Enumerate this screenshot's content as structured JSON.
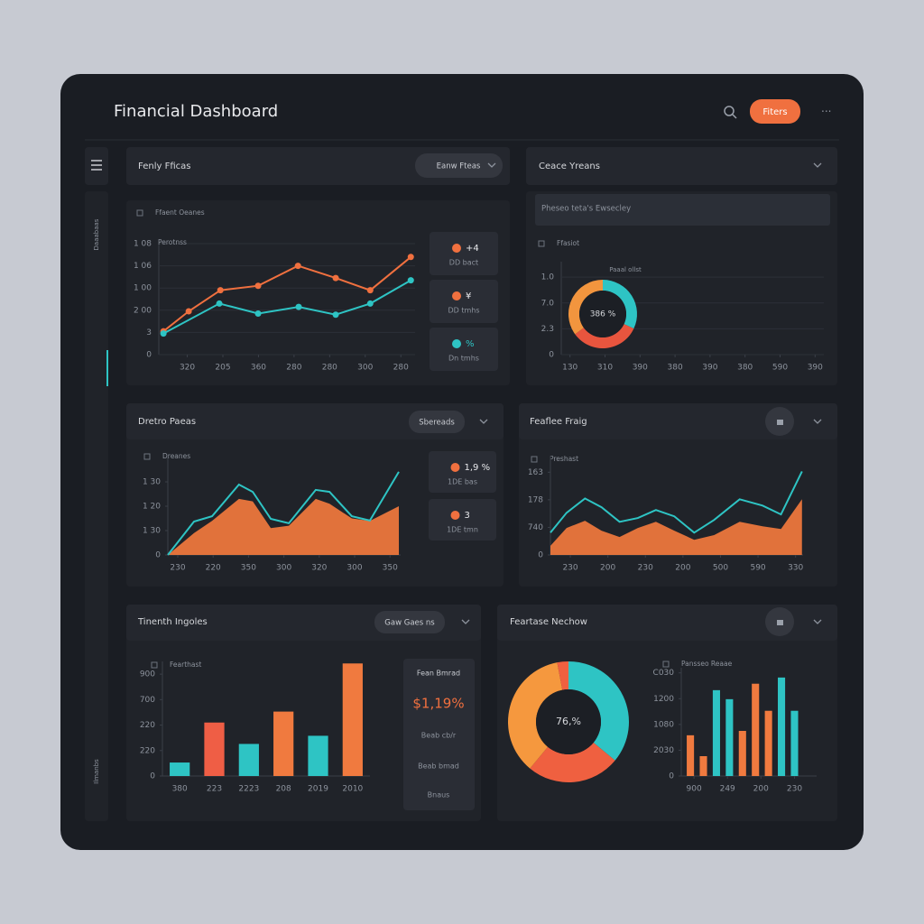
{
  "header": {
    "title": "Financial Dashboard",
    "button": "Fiters"
  },
  "sidebar": {
    "labels": [
      "Daaabaas",
      "Ilmanbs"
    ]
  },
  "panels": [
    {
      "title": "Fenly Fficas",
      "button": "Eanw Fteas",
      "label": "Ffaent Oeanes",
      "cards": [
        {
          "value": "+4",
          "label": "DD bact",
          "color": "#f0703f"
        },
        {
          "value": "¥",
          "label": "DD tmhs",
          "color": "#f0703f"
        },
        {
          "value": "%",
          "label": "Dn tmhs",
          "color": "#2ec4c4"
        }
      ]
    },
    {
      "title": "Ceace Yreans",
      "input": "Pheseo teta's Ewsecley",
      "label": "Ffasiot"
    },
    {
      "title": "Dretro Paeas",
      "button": "Sbereads",
      "label": "Dreanes",
      "cards": [
        {
          "value": "1,9 %",
          "label": "1DE bas",
          "color": "#f0703f"
        },
        {
          "value": "3",
          "label": "1DE tmn",
          "color": "#f0703f"
        }
      ]
    },
    {
      "title": "Feaflee Fraig",
      "label": "Preshast"
    },
    {
      "title": "Tinenth Ingoles",
      "button": "Gaw Gaes ns",
      "label": "Fearthast",
      "card": {
        "title": "Fean Bmrad",
        "value": "$1,19%",
        "lines": [
          "Beab cb/r",
          "Beab bmad",
          "Bnaus"
        ]
      }
    },
    {
      "title": "Feartase Nechow",
      "label": "Pansseo Reaae"
    }
  ],
  "chart_data": [
    {
      "type": "line",
      "subtitle": "Perotnss",
      "xlim": [
        0.2,
        7.4
      ],
      "xticks": [
        {
          "value": 1,
          "label": "320"
        },
        {
          "value": 2,
          "label": "205"
        },
        {
          "value": 3,
          "label": "360"
        },
        {
          "value": 4,
          "label": "280"
        },
        {
          "value": 5,
          "label": "280"
        },
        {
          "value": 6,
          "label": "300"
        },
        {
          "value": 7,
          "label": "280"
        }
      ],
      "ylim": [
        0,
        100
      ],
      "yticks": [
        0,
        {
          "value": 20,
          "label": "3"
        },
        {
          "value": 40,
          "label": "2 00"
        },
        {
          "value": 60,
          "label": "1 00"
        },
        {
          "value": 80,
          "label": "1 06"
        },
        {
          "value": 100,
          "label": "1 08"
        }
      ],
      "grid": true,
      "markers": true,
      "series": [
        {
          "color": "#f0703f",
          "x": [
            0.33,
            1.04,
            1.93,
            2.99,
            4.11,
            5.17,
            6.14,
            7.28
          ],
          "values": [
            21,
            39,
            58,
            62,
            80,
            69,
            58,
            88
          ]
        },
        {
          "color": "#2ec4c4",
          "x": [
            0.33,
            1.9,
            2.99,
            4.13,
            5.17,
            6.14,
            7.28
          ],
          "values": [
            19,
            46,
            37,
            43,
            36,
            46,
            67
          ]
        }
      ]
    },
    {
      "type": "donut",
      "annotation": "Paaal ollst",
      "center_label": "386 %",
      "values": [
        32,
        33,
        35
      ],
      "colors": [
        "#2ec4c4",
        "#e8553e",
        "#f2953e"
      ],
      "xlim": [
        0.75,
        8.25
      ],
      "xticks": [
        {
          "value": 1,
          "label": "130"
        },
        {
          "value": 2,
          "label": "310"
        },
        {
          "value": 3,
          "label": "390"
        },
        {
          "value": 4,
          "label": "380"
        },
        {
          "value": 5,
          "label": "390"
        },
        {
          "value": 6,
          "label": "380"
        },
        {
          "value": 7,
          "label": "590"
        },
        {
          "value": 8,
          "label": "390"
        }
      ],
      "ylim": [
        0,
        3.6
      ],
      "yticks": [
        0,
        {
          "value": 1,
          "label": "2.3"
        },
        {
          "value": 2,
          "label": "7.0"
        },
        {
          "value": 3,
          "label": "1.0"
        }
      ],
      "grid": true
    },
    {
      "type": "area",
      "x": [
        0.72,
        1.46,
        1.97,
        2.73,
        3.12,
        3.63,
        4.14,
        4.9,
        5.29,
        5.92,
        6.43,
        7.25
      ],
      "xlim": [
        0.72,
        7.3
      ],
      "xticks": [
        {
          "value": 1,
          "label": "230"
        },
        {
          "value": 2,
          "label": "220"
        },
        {
          "value": 3,
          "label": "350"
        },
        {
          "value": 4,
          "label": "300"
        },
        {
          "value": 5,
          "label": "320"
        },
        {
          "value": 6,
          "label": "300"
        },
        {
          "value": 7,
          "label": "350"
        }
      ],
      "ylim": [
        0,
        4
      ],
      "yticks": [
        0,
        {
          "value": 1,
          "label": "1 30"
        },
        {
          "value": 2,
          "label": "1 20"
        },
        {
          "value": 3,
          "label": "1 30"
        }
      ],
      "series": [
        {
          "style": "area",
          "color": "#f27a3d",
          "values": [
            0,
            0.9,
            1.4,
            2.3,
            2.2,
            1.1,
            1.2,
            2.3,
            2.1,
            1.5,
            1.4,
            2.0
          ]
        },
        {
          "style": "line",
          "color": "#2ec4c4",
          "values": [
            0,
            1.37,
            1.59,
            2.89,
            2.59,
            1.48,
            1.3,
            2.67,
            2.59,
            1.59,
            1.41,
            3.41
          ]
        }
      ]
    },
    {
      "type": "area",
      "x": [
        0.47,
        0.9,
        1.39,
        1.83,
        2.31,
        2.8,
        3.28,
        3.77,
        4.3,
        4.83,
        5.51,
        6.12,
        6.61,
        7.17
      ],
      "xlim": [
        0.47,
        7.2
      ],
      "xticks": [
        {
          "value": 1,
          "label": "230"
        },
        {
          "value": 2,
          "label": "200"
        },
        {
          "value": 3,
          "label": "230"
        },
        {
          "value": 4,
          "label": "200"
        },
        {
          "value": 5,
          "label": "500"
        },
        {
          "value": 6,
          "label": "590"
        },
        {
          "value": 7,
          "label": "330"
        }
      ],
      "ylim": [
        0,
        3.6
      ],
      "yticks": [
        0,
        {
          "value": 1,
          "label": "740"
        },
        {
          "value": 2,
          "label": "178"
        },
        {
          "value": 3,
          "label": "163"
        }
      ],
      "series": [
        {
          "style": "area",
          "color": "#f27a3d",
          "values": [
            0.33,
            0.98,
            1.24,
            0.88,
            0.65,
            0.98,
            1.2,
            0.88,
            0.55,
            0.72,
            1.2,
            1.04,
            0.94,
            2.02
          ]
        },
        {
          "style": "line",
          "color": "#2ec4c4",
          "values": [
            0.81,
            1.53,
            2.05,
            1.73,
            1.2,
            1.34,
            1.63,
            1.4,
            0.81,
            1.27,
            2.02,
            1.79,
            1.47,
            3.03
          ]
        }
      ]
    },
    {
      "type": "bar",
      "categories": [
        "380",
        "223",
        "2223",
        "208",
        "2019",
        "2010"
      ],
      "values": [
        0.53,
        2.1,
        1.26,
        2.53,
        1.58,
        4.42
      ],
      "colors": [
        "#2ec4c4",
        "#ef5e45",
        "#2ec4c4",
        "#f07a3f",
        "#2ec4c4",
        "#f07a3f"
      ],
      "ylim": [
        0,
        4.5
      ],
      "yticks": [
        0,
        {
          "value": 1,
          "label": "220"
        },
        {
          "value": 2,
          "label": "220"
        },
        {
          "value": 3,
          "label": "700"
        },
        {
          "value": 4,
          "label": "900"
        }
      ]
    },
    {
      "type": "donut",
      "center_label": "76,%",
      "values": [
        36,
        25,
        36,
        3
      ],
      "colors": [
        "#2ec4c4",
        "#ef6040",
        "#f5983e",
        "#ef6040"
      ]
    },
    {
      "type": "bar",
      "x": [
        0,
        1,
        2,
        3,
        4,
        5,
        6,
        7,
        8
      ],
      "values": [
        1.58,
        0.77,
        3.33,
        2.98,
        1.75,
        3.58,
        2.53,
        3.82,
        2.53
      ],
      "colors": [
        "#f07a3f",
        "#f07a3f",
        "#2ec4c4",
        "#2ec4c4",
        "#f07a3f",
        "#f07a3f",
        "#f07a3f",
        "#2ec4c4",
        "#2ec4c4"
      ],
      "xlim": [
        -0.7,
        9.7
      ],
      "xticks": [
        {
          "value": 0.28,
          "label": "900"
        },
        {
          "value": 2.85,
          "label": "249"
        },
        {
          "value": 5.42,
          "label": "200"
        },
        {
          "value": 8,
          "label": "230"
        }
      ],
      "ylim": [
        0,
        4.2
      ],
      "yticks": [
        0,
        {
          "value": 1,
          "label": "2030"
        },
        {
          "value": 2,
          "label": "1080"
        },
        {
          "value": 3,
          "label": "1200"
        },
        {
          "value": 4,
          "label": "C030"
        }
      ]
    }
  ]
}
